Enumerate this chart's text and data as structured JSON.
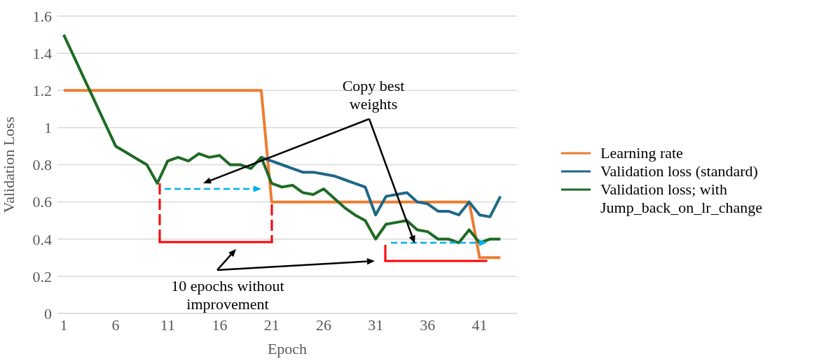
{
  "chart_data": {
    "type": "line",
    "xlabel": "Epoch",
    "ylabel": "Validation Loss",
    "x": [
      1,
      2,
      3,
      4,
      5,
      6,
      7,
      8,
      9,
      10,
      11,
      12,
      13,
      14,
      15,
      16,
      17,
      18,
      19,
      20,
      21,
      22,
      23,
      24,
      25,
      26,
      27,
      28,
      29,
      30,
      31,
      32,
      33,
      34,
      35,
      36,
      37,
      38,
      39,
      40,
      41,
      42,
      43
    ],
    "xlim": [
      0.4,
      44.6
    ],
    "xticks": [
      1,
      6,
      11,
      16,
      21,
      26,
      31,
      36,
      41
    ],
    "series": [
      {
        "name": "Learning rate",
        "color": "#ed7d31",
        "values": [
          1.2,
          1.2,
          1.2,
          1.2,
          1.2,
          1.2,
          1.2,
          1.2,
          1.2,
          1.2,
          1.2,
          1.2,
          1.2,
          1.2,
          1.2,
          1.2,
          1.2,
          1.2,
          1.2,
          1.2,
          0.6,
          0.6,
          0.6,
          0.6,
          0.6,
          0.6,
          0.6,
          0.6,
          0.6,
          0.6,
          0.6,
          0.6,
          0.6,
          0.6,
          0.6,
          0.6,
          0.6,
          0.6,
          0.6,
          0.6,
          0.3,
          0.3,
          0.3
        ]
      },
      {
        "name": "Validation loss (standard)",
        "color": "#1f6788",
        "values": [
          null,
          null,
          null,
          null,
          null,
          null,
          null,
          null,
          null,
          null,
          null,
          null,
          null,
          null,
          null,
          null,
          null,
          null,
          null,
          0.84,
          0.82,
          0.8,
          0.78,
          0.76,
          0.76,
          0.75,
          0.74,
          0.72,
          0.7,
          0.68,
          0.53,
          0.63,
          0.64,
          0.65,
          0.6,
          0.59,
          0.55,
          0.55,
          0.53,
          0.6,
          0.53,
          0.52,
          0.63
        ]
      },
      {
        "name": "Validation loss; with Jump_back_on_lr_change",
        "color": "#1e6b24",
        "values": [
          1.5,
          1.38,
          1.26,
          1.14,
          1.02,
          0.9,
          0.867,
          0.833,
          0.8,
          0.7,
          0.82,
          0.84,
          0.82,
          0.86,
          0.84,
          0.85,
          0.8,
          0.8,
          0.78,
          0.84,
          0.7,
          0.68,
          0.69,
          0.65,
          0.64,
          0.67,
          0.62,
          0.57,
          0.53,
          0.5,
          0.4,
          0.48,
          0.49,
          0.5,
          0.45,
          0.44,
          0.4,
          0.4,
          0.38,
          0.45,
          0.38,
          0.4,
          0.4
        ]
      }
    ],
    "ylim": [
      0,
      1.6
    ],
    "yticks": [
      0,
      0.2,
      0.4,
      0.6,
      0.8,
      1,
      1.2,
      1.4,
      1.6
    ],
    "grid": "y",
    "legend": "right",
    "marker": "none",
    "line_style": "solid",
    "annotations": [
      "Copy best weights",
      "10 epochs without improvement"
    ]
  }
}
